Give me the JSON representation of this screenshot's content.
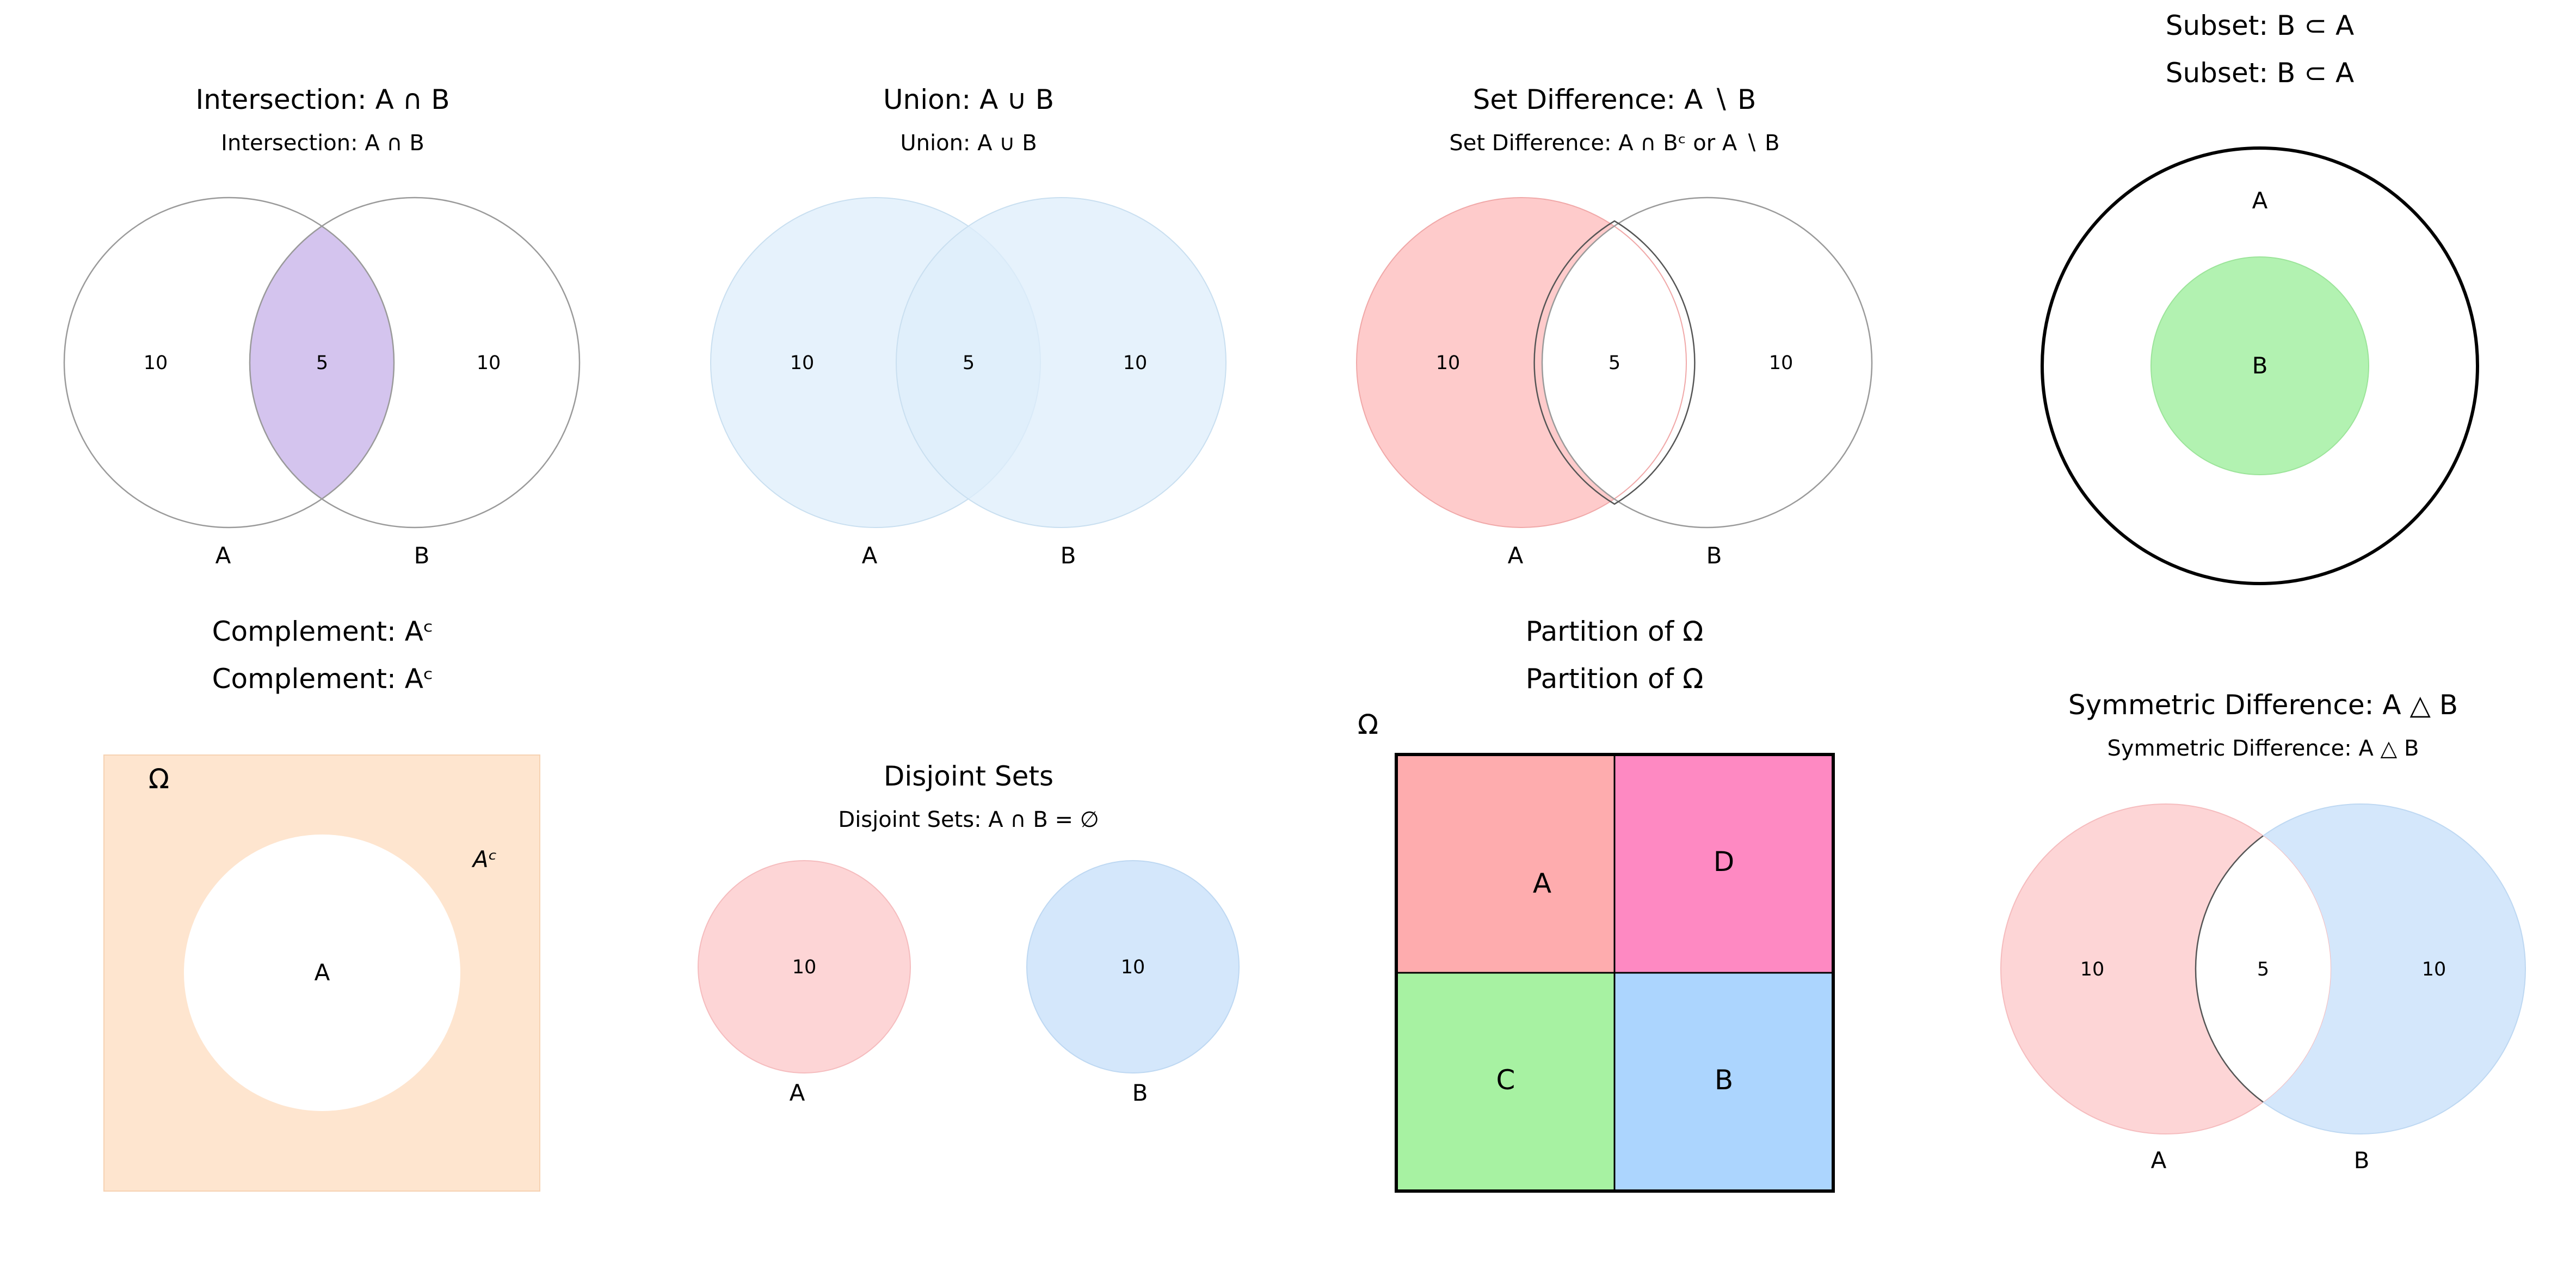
{
  "intersection": {
    "title": "Intersection: A ∩ B",
    "subtitle": "Intersection: A ∩ B",
    "count_a_only": "10",
    "count_both": "5",
    "count_b_only": "10",
    "label_a": "A",
    "label_b": "B",
    "fill_color": "#d4c4ee"
  },
  "union": {
    "title": "Union: A ∪ B",
    "subtitle": "Union: A ∪ B",
    "count_a_only": "10",
    "count_both": "5",
    "count_b_only": "10",
    "label_a": "A",
    "label_b": "B",
    "fill_color": "#ddeefb"
  },
  "difference": {
    "title": "Set Difference: A ∖ B",
    "subtitle": "Set Difference: A ∩ Bᶜ or A ∖ B",
    "count_a_only": "10",
    "count_both": "5",
    "count_b_only": "10",
    "label_a": "A",
    "label_b": "B",
    "fill_color": "#fecbcb"
  },
  "subset": {
    "title": "Subset: B ⊂ A",
    "subtitle": "Subset: B ⊂ A",
    "label_a": "A",
    "label_b": "B",
    "fill_color": "#b2f2b1"
  },
  "complement": {
    "title": "Complement: Aᶜ",
    "subtitle": "Complement: Aᶜ",
    "omega": "Ω",
    "label_ac": "Aᶜ",
    "label_a": "A",
    "fill_color": "#fee5cf"
  },
  "disjoint": {
    "title": "Disjoint Sets",
    "subtitle": "Disjoint Sets: A ∩ B = ∅",
    "count_a": "10",
    "count_b": "10",
    "label_a": "A",
    "label_b": "B",
    "color_a": "#fdd5d6",
    "color_b": "#d4e7fb"
  },
  "partition": {
    "title": "Partition of Ω",
    "subtitle": "Partition of Ω",
    "omega": "Ω",
    "cells": [
      {
        "label": "A",
        "color": "#feacae"
      },
      {
        "label": "D",
        "color": "#fe89c2"
      },
      {
        "label": "C",
        "color": "#a7f2a2"
      },
      {
        "label": "B",
        "color": "#acd5fe"
      }
    ]
  },
  "symdiff": {
    "title": "Symmetric Difference: A △ B",
    "subtitle": "Symmetric Difference: A △ B",
    "count_a_only": "10",
    "count_both": "5",
    "count_b_only": "10",
    "label_a": "A",
    "label_b": "B",
    "color_a": "#fdd5d6",
    "color_b": "#d4e7fb"
  }
}
